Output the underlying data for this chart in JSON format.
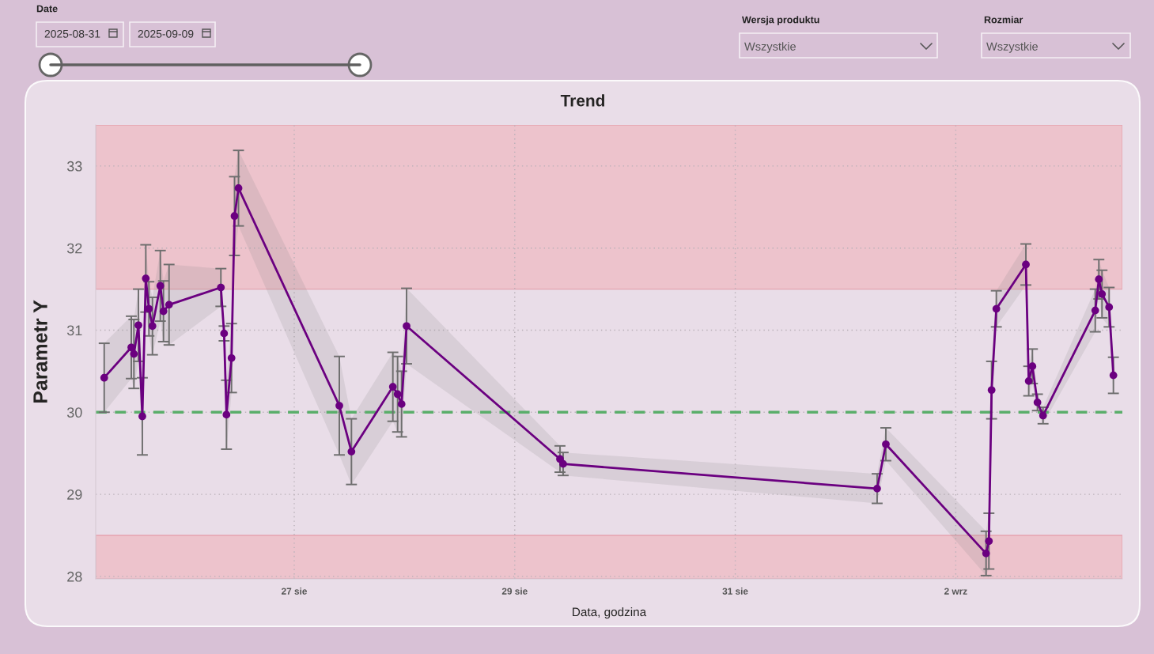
{
  "chart_data": {
    "type": "line",
    "title": "Trend",
    "xlabel": "Data, godzina",
    "ylabel": "Parametr Y",
    "x": [
      "2025-08-25T06:38",
      "2025-08-25T12:32",
      "2025-08-25T13:06",
      "2025-08-25T14:05",
      "2025-08-25T14:56",
      "2025-08-25T15:41",
      "2025-08-25T16:22",
      "2025-08-25T17:08",
      "2025-08-25T18:51",
      "2025-08-25T19:32",
      "2025-08-25T20:45",
      "2025-08-26T08:02",
      "2025-08-26T08:44",
      "2025-08-26T09:15",
      "2025-08-26T10:21",
      "2025-08-26T11:00",
      "2025-08-26T11:52",
      "2025-08-27T09:49",
      "2025-08-27T12:27",
      "2025-08-27T21:28",
      "2025-08-27T22:30",
      "2025-08-27T23:22",
      "2025-08-28T00:27",
      "2025-08-29T09:51",
      "2025-08-29T10:32",
      "2025-09-01T06:53",
      "2025-09-01T08:47",
      "2025-09-02T06:36",
      "2025-09-02T07:13",
      "2025-09-02T07:48",
      "2025-09-02T08:50",
      "2025-09-02T15:16",
      "2025-09-02T15:53",
      "2025-09-02T16:41",
      "2025-09-02T17:47",
      "2025-09-02T19:00",
      "2025-09-03T06:22",
      "2025-09-03T07:09",
      "2025-09-03T07:50",
      "2025-09-03T09:23",
      "2025-09-03T10:19"
    ],
    "series": [
      {
        "color": "#6b0080",
        "values": [
          30.42,
          30.79,
          30.71,
          31.06,
          29.95,
          31.63,
          31.26,
          31.05,
          31.54,
          31.23,
          31.31,
          31.52,
          30.96,
          29.97,
          30.66,
          32.39,
          32.73,
          30.08,
          29.52,
          30.31,
          30.22,
          30.1,
          31.05,
          29.43,
          29.37,
          29.07,
          29.61,
          28.28,
          28.43,
          30.27,
          31.26,
          31.8,
          30.38,
          30.56,
          30.12,
          29.96,
          31.24,
          31.62,
          31.44,
          31.28,
          30.45
        ],
        "errors": [
          0.42,
          0.38,
          0.42,
          0.44,
          0.47,
          0.41,
          0.33,
          0.35,
          0.43,
          0.37,
          0.49,
          0.23,
          0.09,
          0.42,
          0.42,
          0.48,
          0.46,
          0.6,
          0.4,
          0.42,
          0.46,
          0.4,
          0.46,
          0.16,
          0.14,
          0.18,
          0.2,
          0.27,
          0.34,
          0.35,
          0.22,
          0.25,
          0.18,
          0.21,
          0.1,
          0.1,
          0.26,
          0.24,
          0.29,
          0.24,
          0.22
        ],
        "lower": [
          30.0,
          30.41,
          30.29,
          30.62,
          29.48,
          31.22,
          30.93,
          30.7,
          31.11,
          30.86,
          30.82,
          31.29,
          30.87,
          29.55,
          30.24,
          31.91,
          32.27,
          29.48,
          29.12,
          29.89,
          29.76,
          29.7,
          30.59,
          29.27,
          29.23,
          28.89,
          29.41,
          28.01,
          28.09,
          29.92,
          31.04,
          31.55,
          30.2,
          30.35,
          30.02,
          29.86,
          30.98,
          31.38,
          31.15,
          31.04,
          30.23
        ],
        "upper": [
          30.84,
          31.17,
          31.13,
          31.5,
          30.42,
          32.04,
          31.59,
          31.4,
          31.97,
          31.6,
          31.8,
          31.75,
          31.05,
          30.39,
          31.08,
          32.87,
          33.19,
          30.68,
          29.92,
          30.73,
          30.68,
          30.5,
          31.51,
          29.59,
          29.51,
          29.25,
          29.81,
          28.55,
          28.77,
          30.62,
          31.48,
          32.05,
          30.56,
          30.77,
          30.22,
          30.06,
          31.5,
          31.86,
          31.73,
          31.52,
          30.67
        ]
      }
    ],
    "marker": "circle",
    "line_style": "solid",
    "xlim": [
      "2025-08-25T04:47",
      "2025-09-03T12:16"
    ],
    "xticks": [
      {
        "value": "2025-08-27",
        "label": "27 sie"
      },
      {
        "value": "2025-08-29",
        "label": "29 sie"
      },
      {
        "value": "2025-08-31",
        "label": "31 sie"
      },
      {
        "value": "2025-09-02",
        "label": "2 wrz"
      }
    ],
    "ylim": [
      27.97,
      33.5
    ],
    "yticks": [
      28,
      29,
      30,
      31,
      32,
      33
    ],
    "grid": true,
    "ref_lines": [
      {
        "axis": "y",
        "value": 30,
        "color": "#5aae6a",
        "line_style": "dashed"
      }
    ],
    "bands": [
      {
        "axis": "y",
        "from": 31.5,
        "to": 33.5,
        "color": "#f0b3bb"
      },
      {
        "axis": "y",
        "from": 27.97,
        "to": 28.5,
        "color": "#f0b3bb"
      }
    ],
    "annotations": [
      "Date",
      "2025-08-31",
      "2025-09-09",
      "Wersja produktu",
      "Wszystkie",
      "Rozmiar",
      "Wszystkie"
    ]
  }
}
